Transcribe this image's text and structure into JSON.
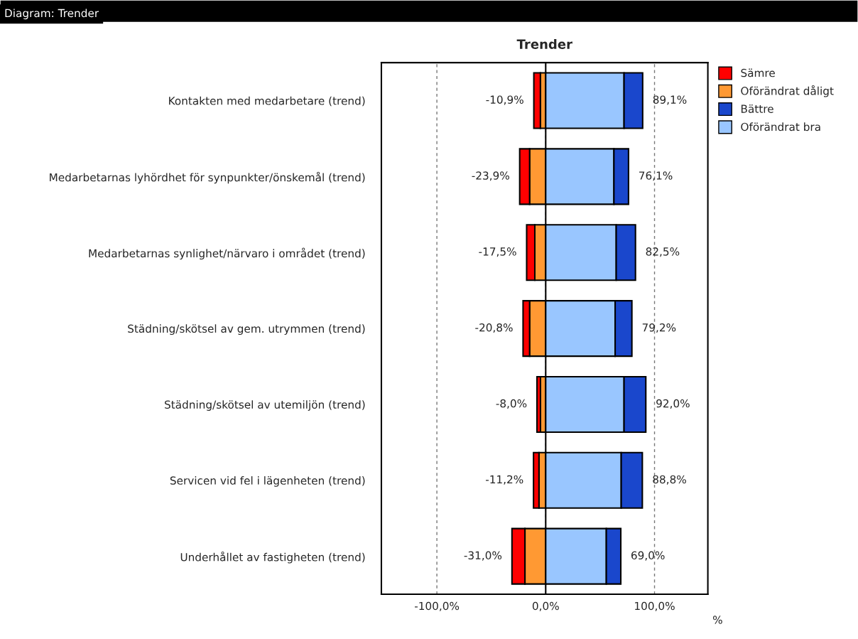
{
  "chart_data": {
    "type": "bar",
    "orientation": "horizontal",
    "stacked": true,
    "title": "Trender",
    "xlabel": "%",
    "categories": [
      "Kontakten med medarbetare (trend)",
      "Medarbetarnas lyhördhet för synpunkter/önskemål (trend)",
      "Medarbetarnas synlighet/närvaro i området (trend)",
      "Städning/skötsel av gem. utrymmen (trend)",
      "Städning/skötsel av utemiljön (trend)",
      "Servicen vid fel i lägenheten (trend)",
      "Underhållet av fastigheten (trend)"
    ],
    "series": [
      {
        "name": "Oförändrat dåligt",
        "color": "#ff9933",
        "values": [
          -4.9,
          -14.8,
          -10.0,
          -14.8,
          -4.8,
          -6.2,
          -19.1
        ]
      },
      {
        "name": "Sämre",
        "color": "#ff0000",
        "values": [
          -6.0,
          -9.1,
          -7.5,
          -6.0,
          -3.2,
          -5.0,
          -11.9
        ]
      },
      {
        "name": "Oförändrat bra",
        "color": "#99c6ff",
        "values": [
          72.0,
          62.7,
          64.8,
          63.8,
          72.0,
          69.4,
          55.7
        ]
      },
      {
        "name": "Bättre",
        "color": "#1a47cc",
        "values": [
          17.1,
          13.4,
          17.7,
          15.4,
          20.0,
          19.4,
          13.3
        ]
      }
    ],
    "xlim": [
      -151,
      149
    ],
    "xticks": [
      {
        "value": -100,
        "label": "-100,0%"
      },
      {
        "value": 0,
        "label": "0,0%"
      },
      {
        "value": 100,
        "label": "100,0%"
      }
    ],
    "grid": "x",
    "legend": "top right",
    "ref_lines": [
      {
        "axis": "x",
        "value": 0,
        "label": null,
        "color": "#000000",
        "line_style": "solid"
      }
    ],
    "annotations": [
      "Diagram: Trender",
      {
        "text": "-10,9%",
        "x": -10.9,
        "y": "Kontakten med medarbetare (trend)"
      },
      {
        "text": "89,1%",
        "x": 89.1,
        "y": "Kontakten med medarbetare (trend)"
      },
      {
        "text": "-23,9%",
        "x": -23.9,
        "y": "Medarbetarnas lyhördhet för synpunkter/önskemål (trend)"
      },
      {
        "text": "76,1%",
        "x": 76.1,
        "y": "Medarbetarnas lyhördhet för synpunkter/önskemål (trend)"
      },
      {
        "text": "-17,5%",
        "x": -17.5,
        "y": "Medarbetarnas synlighet/närvaro i området (trend)"
      },
      {
        "text": "82,5%",
        "x": 82.5,
        "y": "Medarbetarnas synlighet/närvaro i området (trend)"
      },
      {
        "text": "-20,8%",
        "x": -20.8,
        "y": "Städning/skötsel av gem. utrymmen (trend)"
      },
      {
        "text": "79,2%",
        "x": 79.2,
        "y": "Städning/skötsel av gem. utrymmen (trend)"
      },
      {
        "text": "-8,0%",
        "x": -8.0,
        "y": "Städning/skötsel av utemiljön (trend)"
      },
      {
        "text": "92,0%",
        "x": 92.0,
        "y": "Städning/skötsel av utemiljön (trend)"
      },
      {
        "text": "-11,2%",
        "x": -11.2,
        "y": "Servicen vid fel i lägenheten (trend)"
      },
      {
        "text": "88,8%",
        "x": 88.8,
        "y": "Servicen vid fel i lägenheten (trend)"
      },
      {
        "text": "-31,0%",
        "x": -31.0,
        "y": "Underhållet av fastigheten (trend)"
      },
      {
        "text": "69,0%",
        "x": 69.0,
        "y": "Underhållet av fastigheten (trend)"
      }
    ]
  }
}
